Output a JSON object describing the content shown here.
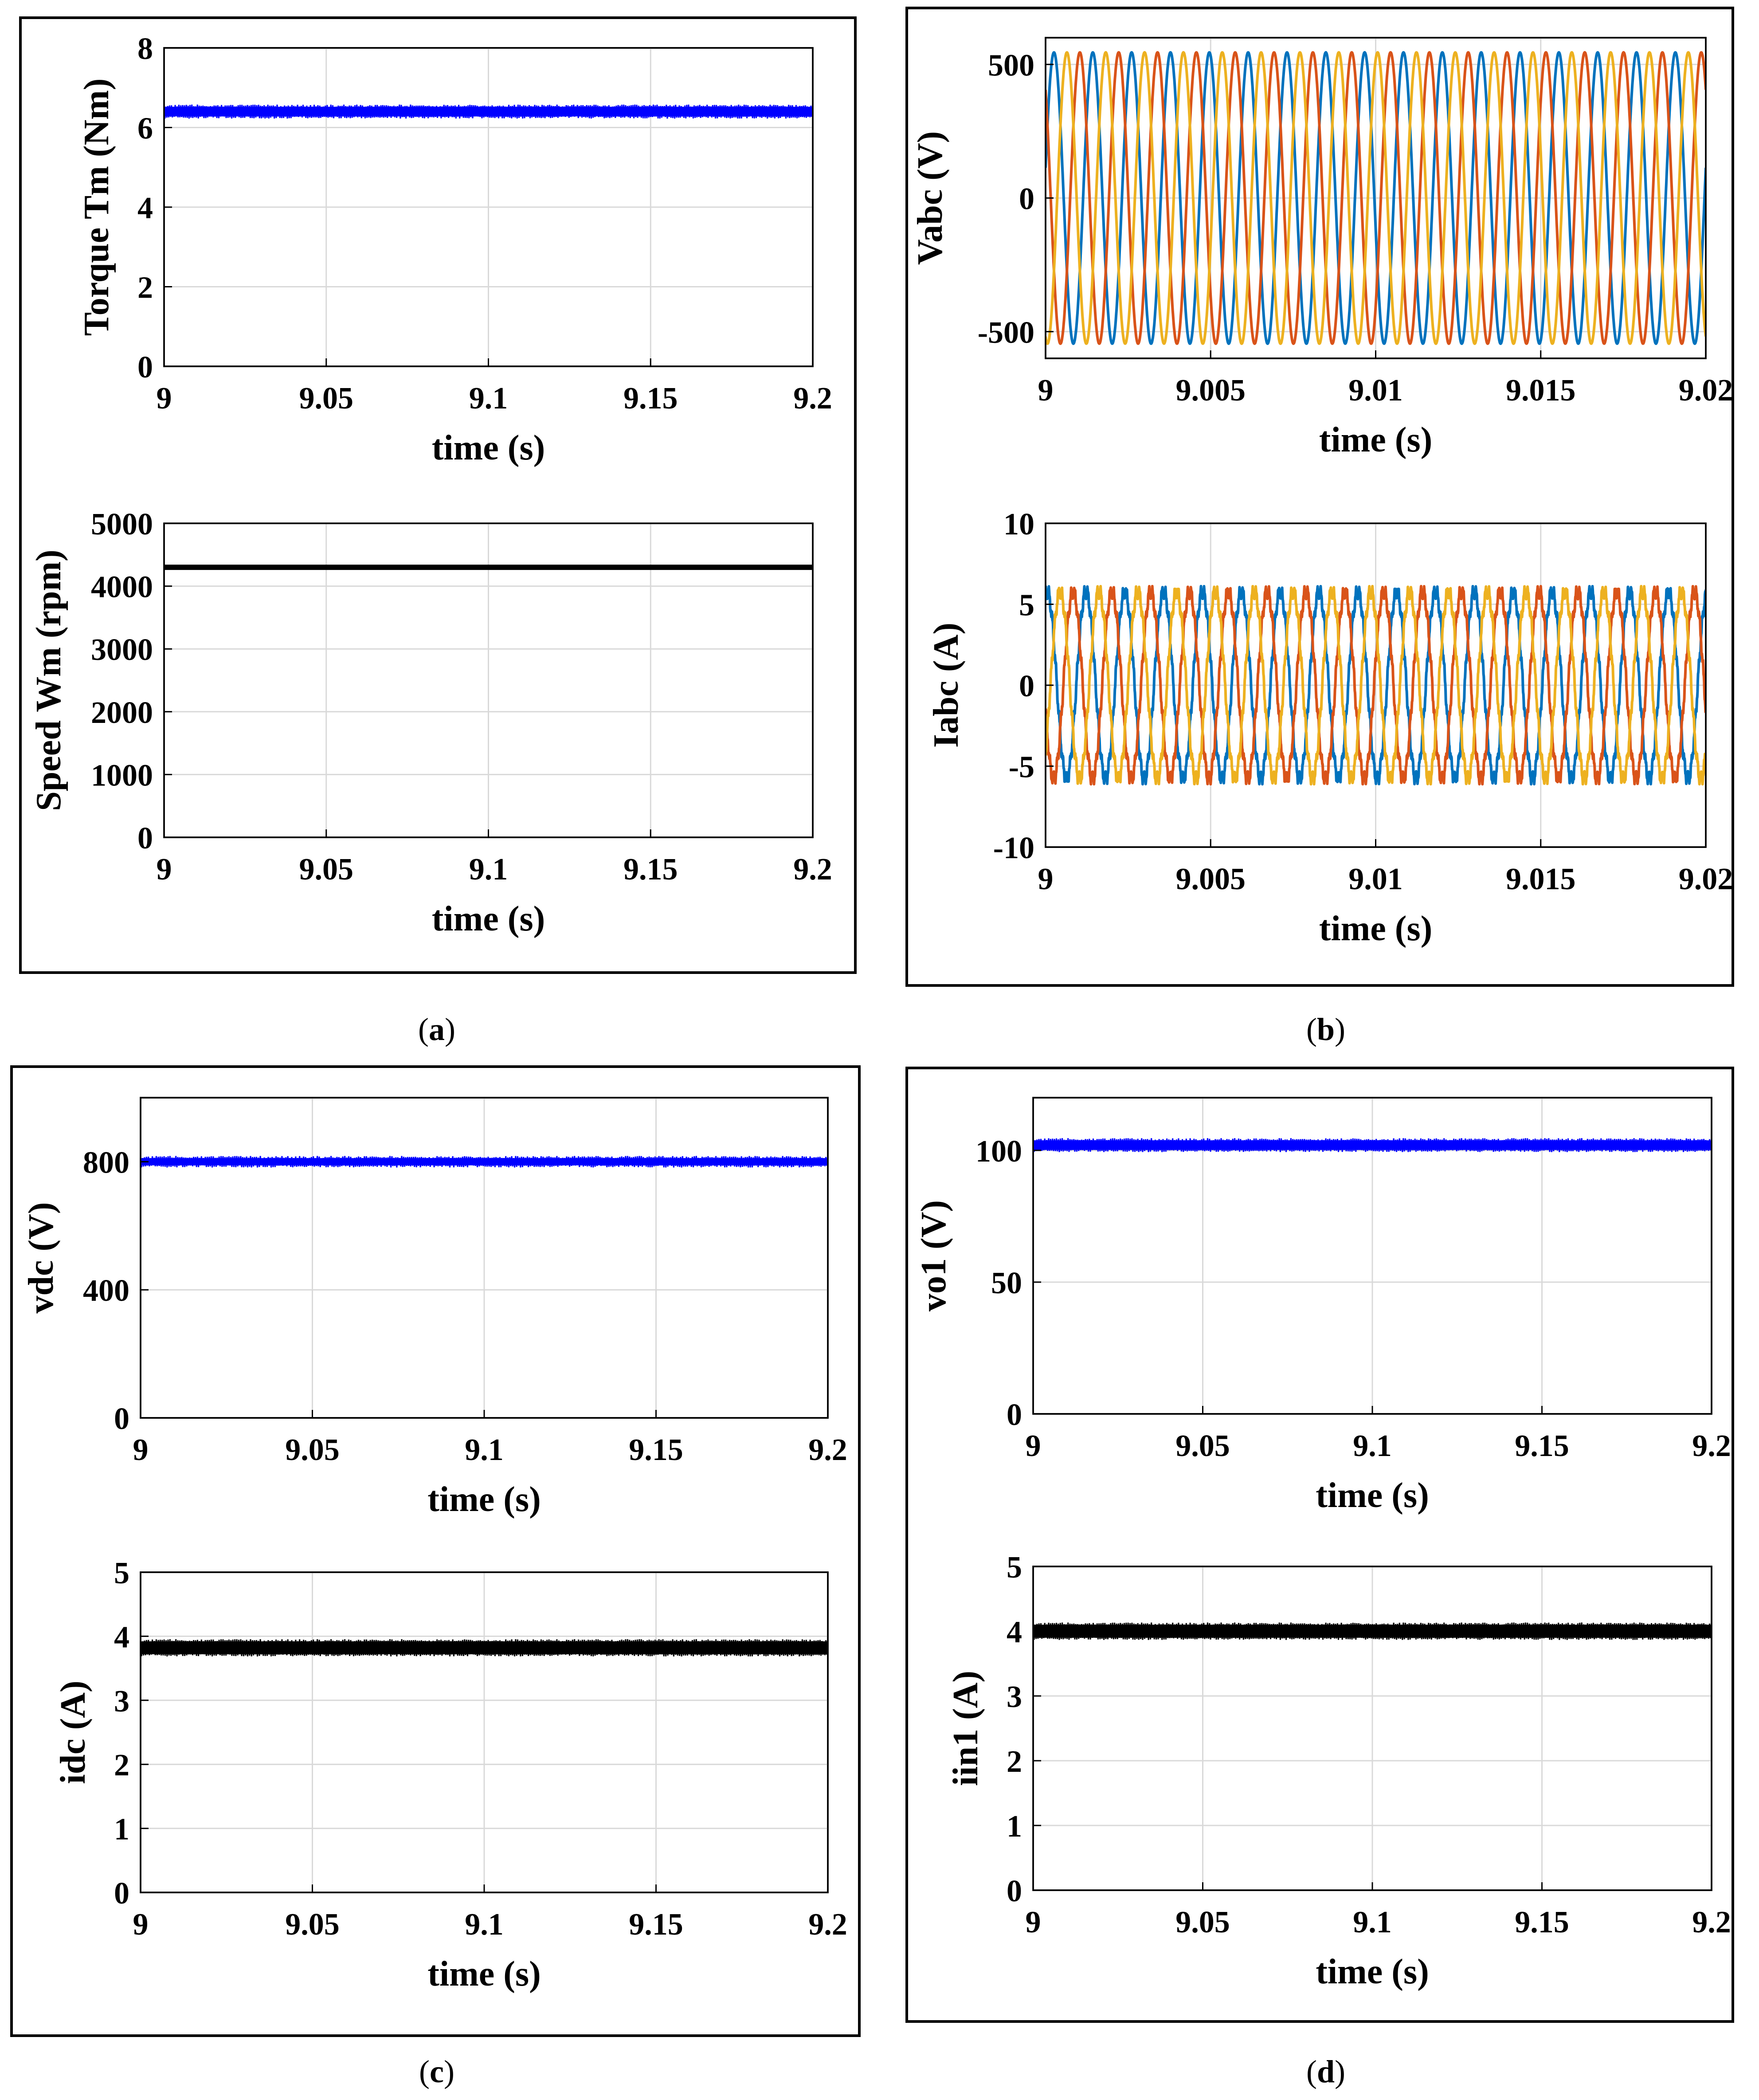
{
  "panels": [
    {
      "id": "a",
      "caption": "a"
    },
    {
      "id": "b",
      "caption": "b"
    },
    {
      "id": "c",
      "caption": "c"
    },
    {
      "id": "d",
      "caption": "d"
    }
  ],
  "colors": {
    "blue": "#0000ff",
    "black": "#000000",
    "phase_a": "#0072bd",
    "phase_b": "#d95319",
    "phase_c": "#edb120",
    "grid": "#d9d9d9"
  },
  "chart_data": [
    {
      "id": "a1",
      "panel": "a",
      "type": "line",
      "xlabel": "time (s)",
      "ylabel": "Torque Tm (Nm)",
      "xlim": [
        9,
        9.2
      ],
      "ylim": [
        0,
        8
      ],
      "xticks": [
        9,
        9.05,
        9.1,
        9.15,
        9.2
      ],
      "xtick_labels": [
        "9",
        "9.05",
        "9.1",
        "9.15",
        "9.2"
      ],
      "yticks": [
        0,
        2,
        4,
        6,
        8
      ],
      "ytick_labels": [
        "0",
        "2",
        "4",
        "6",
        "8"
      ],
      "series": [
        {
          "name": "Tm",
          "kind": "band",
          "center": 6.4,
          "ripple": 0.12,
          "color": "#0000ff"
        }
      ]
    },
    {
      "id": "a2",
      "panel": "a",
      "type": "line",
      "xlabel": "time (s)",
      "ylabel": "Speed Wm (rpm)",
      "xlim": [
        9,
        9.2
      ],
      "ylim": [
        0,
        5000
      ],
      "xticks": [
        9,
        9.05,
        9.1,
        9.15,
        9.2
      ],
      "xtick_labels": [
        "9",
        "9.05",
        "9.1",
        "9.15",
        "9.2"
      ],
      "yticks": [
        0,
        1000,
        2000,
        3000,
        4000,
        5000
      ],
      "ytick_labels": [
        "0",
        "1000",
        "2000",
        "3000",
        "4000",
        "5000"
      ],
      "series": [
        {
          "name": "Wm",
          "kind": "flat",
          "value": 4300,
          "color": "#000000"
        }
      ]
    },
    {
      "id": "b1",
      "panel": "b",
      "type": "line",
      "xlabel": "time (s)",
      "ylabel": "Vabc (V)",
      "xlim": [
        9,
        9.02
      ],
      "ylim": [
        -600,
        600
      ],
      "xticks": [
        9,
        9.005,
        9.01,
        9.015,
        9.02
      ],
      "xtick_labels": [
        "9",
        "9.005",
        "9.01",
        "9.015",
        "9.02"
      ],
      "yticks": [
        -500,
        0,
        500
      ],
      "ytick_labels": [
        "-500",
        "0",
        "500"
      ],
      "series": [
        {
          "name": "Va",
          "kind": "sine",
          "amplitude": 545,
          "frequency_hz": 850,
          "phase_deg": 12,
          "color": "#0072bd"
        },
        {
          "name": "Vb",
          "kind": "sine",
          "amplitude": 545,
          "frequency_hz": 850,
          "phase_deg": 132,
          "color": "#d95319"
        },
        {
          "name": "Vc",
          "kind": "sine",
          "amplitude": 545,
          "frequency_hz": 850,
          "phase_deg": 252,
          "color": "#edb120"
        }
      ]
    },
    {
      "id": "b2",
      "panel": "b",
      "type": "line",
      "xlabel": "time (s)",
      "ylabel": "Iabc (A)",
      "xlim": [
        9,
        9.02
      ],
      "ylim": [
        -10,
        10
      ],
      "xticks": [
        9,
        9.005,
        9.01,
        9.015,
        9.02
      ],
      "xtick_labels": [
        "9",
        "9.005",
        "9.01",
        "9.015",
        "9.02"
      ],
      "yticks": [
        -10,
        -5,
        0,
        5,
        10
      ],
      "ytick_labels": [
        "-10",
        "-5",
        "0",
        "5",
        "10"
      ],
      "series": [
        {
          "name": "Ia",
          "kind": "sine",
          "amplitude": 5.8,
          "frequency_hz": 850,
          "phase_deg": 75,
          "color": "#0072bd",
          "harmonic": 0.06
        },
        {
          "name": "Ib",
          "kind": "sine",
          "amplitude": 5.8,
          "frequency_hz": 850,
          "phase_deg": 195,
          "color": "#d95319",
          "harmonic": 0.06
        },
        {
          "name": "Ic",
          "kind": "sine",
          "amplitude": 5.8,
          "frequency_hz": 850,
          "phase_deg": 315,
          "color": "#edb120",
          "harmonic": 0.06
        }
      ]
    },
    {
      "id": "c1",
      "panel": "c",
      "type": "line",
      "xlabel": "time (s)",
      "ylabel": "vdc (V)",
      "xlim": [
        9,
        9.2
      ],
      "ylim": [
        0,
        1000
      ],
      "xticks": [
        9,
        9.05,
        9.1,
        9.15,
        9.2
      ],
      "xtick_labels": [
        "9",
        "9.05",
        "9.1",
        "9.15",
        "9.2"
      ],
      "yticks": [
        0,
        400,
        800
      ],
      "ytick_labels": [
        "0",
        "400",
        "800"
      ],
      "series": [
        {
          "name": "vdc",
          "kind": "band",
          "center": 800,
          "ripple": 8,
          "color": "#0000ff"
        }
      ]
    },
    {
      "id": "c2",
      "panel": "c",
      "type": "line",
      "xlabel": "time (s)",
      "ylabel": "idc (A)",
      "xlim": [
        9,
        9.2
      ],
      "ylim": [
        0,
        5
      ],
      "xticks": [
        9,
        9.05,
        9.1,
        9.15,
        9.2
      ],
      "xtick_labels": [
        "9",
        "9.05",
        "9.1",
        "9.15",
        "9.2"
      ],
      "yticks": [
        0,
        1,
        2,
        3,
        4,
        5
      ],
      "ytick_labels": [
        "0",
        "1",
        "2",
        "3",
        "4",
        "5"
      ],
      "series": [
        {
          "name": "idc",
          "kind": "band",
          "center": 3.82,
          "ripple": 0.1,
          "color": "#000000"
        }
      ]
    },
    {
      "id": "d1",
      "panel": "d",
      "type": "line",
      "xlabel": "time (s)",
      "ylabel": "vo1 (V)",
      "xlim": [
        9,
        9.2
      ],
      "ylim": [
        0,
        120
      ],
      "xticks": [
        9,
        9.05,
        9.1,
        9.15,
        9.2
      ],
      "xtick_labels": [
        "9",
        "9.05",
        "9.1",
        "9.15",
        "9.2"
      ],
      "yticks": [
        0,
        50,
        100
      ],
      "ytick_labels": [
        "0",
        "50",
        "100"
      ],
      "series": [
        {
          "name": "vo1",
          "kind": "band",
          "center": 102,
          "ripple": 1.8,
          "color": "#0000ff"
        }
      ]
    },
    {
      "id": "d2",
      "panel": "d",
      "type": "line",
      "xlabel": "time (s)",
      "ylabel": "iin1 (A)",
      "xlim": [
        9,
        9.2
      ],
      "ylim": [
        0,
        5
      ],
      "xticks": [
        9,
        9.05,
        9.1,
        9.15,
        9.2
      ],
      "xtick_labels": [
        "9",
        "9.05",
        "9.1",
        "9.15",
        "9.2"
      ],
      "yticks": [
        0,
        1,
        2,
        3,
        4,
        5
      ],
      "ytick_labels": [
        "0",
        "1",
        "2",
        "3",
        "4",
        "5"
      ],
      "series": [
        {
          "name": "iin1",
          "kind": "band",
          "center": 4.0,
          "ripple": 0.1,
          "color": "#000000"
        }
      ]
    }
  ]
}
